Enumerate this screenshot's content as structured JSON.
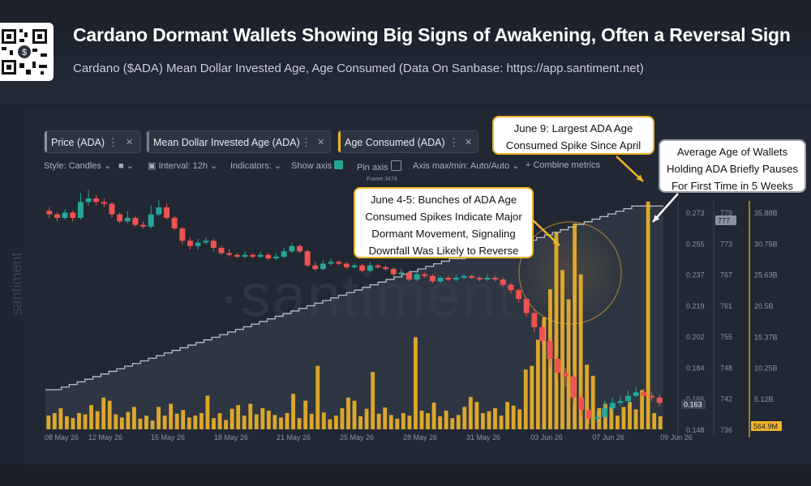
{
  "header": {
    "title": "Cardano Dormant Wallets Showing Big Signs of Awakening, Often a Reversal Sign",
    "subtitle": "Cardano ($ADA) Mean Dollar Invested Age, Age Consumed (Data On Sanbase: https://app.santiment.net)"
  },
  "metrics": [
    {
      "label": "Price (ADA)",
      "color": "#8a92a2"
    },
    {
      "label": "Mean Dollar Invested Age (ADA)",
      "color": "#6f7d95"
    },
    {
      "label": "Age Consumed (ADA)",
      "color": "#f0b429"
    }
  ],
  "toolbar": {
    "style": "Style: Candles",
    "interval": "Interval: 12h",
    "indicators": "Indicators:",
    "show_axis": "Show axis",
    "pin_axis": "Pin axis",
    "axis_maxmin": "Axis max/min: Auto/Auto",
    "combine": "Combine metrics",
    "frame": "Frame 3474"
  },
  "watermark": "santiment",
  "callouts": {
    "june45": "June 4-5: Bunches of ADA Age Consumed Spikes Indicate Major Dormant Movement, Signaling Downfall Was Likely to Reverse",
    "june9": "June 9: Largest ADA Age Consumed Spike Since April",
    "avg_age": "Average Age of Wallets Holding ADA Briefly Pauses For First Time in 5 Weeks"
  },
  "colors": {
    "up": "#26a69a",
    "down": "#ef5350",
    "age_consumed": "#f0b429",
    "mdia": "#b8bec9"
  },
  "chart_data": {
    "type": "candlestick+bar+line",
    "x_tick_labels": [
      "08 May 26",
      "12 May 26",
      "15 May 26",
      "18 May 26",
      "21 May 26",
      "25 May 26",
      "28 May 26",
      "31 May 26",
      "03 Jun 26",
      "07 Jun 26",
      "09 Jun 26"
    ],
    "price_axis": {
      "ticks": [
        "0.273",
        "0.255",
        "0.237",
        "0.219",
        "0.202",
        "0.184",
        "0.166",
        "0.148"
      ],
      "ylim": [
        0.148,
        0.285
      ],
      "current": "0.163"
    },
    "mdia_axis": {
      "ticks": [
        "779",
        "773",
        "767",
        "761",
        "755",
        "748",
        "742",
        "736"
      ],
      "ylim": [
        736,
        782
      ],
      "current": "777"
    },
    "age_consumed_axis": {
      "ticks": [
        "35.88B",
        "30.75B",
        "25.63B",
        "20.5B",
        "15.37B",
        "10.25B",
        "5.12B"
      ],
      "ylim": [
        0,
        37.5
      ],
      "current": "564.9M"
    },
    "price_candles": [
      [
        0.272,
        0.27,
        0.274,
        0.268
      ],
      [
        0.27,
        0.268,
        0.271,
        0.266
      ],
      [
        0.268,
        0.271,
        0.273,
        0.267
      ],
      [
        0.271,
        0.268,
        0.272,
        0.266
      ],
      [
        0.268,
        0.277,
        0.282,
        0.267
      ],
      [
        0.277,
        0.279,
        0.284,
        0.275
      ],
      [
        0.279,
        0.277,
        0.281,
        0.275
      ],
      [
        0.277,
        0.276,
        0.279,
        0.274
      ],
      [
        0.276,
        0.27,
        0.277,
        0.268
      ],
      [
        0.27,
        0.266,
        0.271,
        0.265
      ],
      [
        0.266,
        0.268,
        0.272,
        0.265
      ],
      [
        0.268,
        0.264,
        0.269,
        0.263
      ],
      [
        0.264,
        0.263,
        0.266,
        0.262
      ],
      [
        0.263,
        0.27,
        0.275,
        0.262
      ],
      [
        0.27,
        0.274,
        0.278,
        0.269
      ],
      [
        0.274,
        0.268,
        0.276,
        0.267
      ],
      [
        0.268,
        0.262,
        0.269,
        0.261
      ],
      [
        0.262,
        0.255,
        0.263,
        0.253
      ],
      [
        0.255,
        0.252,
        0.257,
        0.25
      ],
      [
        0.252,
        0.254,
        0.256,
        0.25
      ],
      [
        0.254,
        0.255,
        0.257,
        0.253
      ],
      [
        0.255,
        0.251,
        0.256,
        0.249
      ],
      [
        0.251,
        0.248,
        0.252,
        0.247
      ],
      [
        0.248,
        0.247,
        0.25,
        0.246
      ],
      [
        0.247,
        0.246,
        0.248,
        0.245
      ],
      [
        0.246,
        0.247,
        0.249,
        0.245
      ],
      [
        0.247,
        0.246,
        0.248,
        0.245
      ],
      [
        0.246,
        0.247,
        0.249,
        0.245
      ],
      [
        0.247,
        0.245,
        0.248,
        0.244
      ],
      [
        0.245,
        0.246,
        0.248,
        0.244
      ],
      [
        0.246,
        0.249,
        0.251,
        0.245
      ],
      [
        0.249,
        0.252,
        0.254,
        0.248
      ],
      [
        0.252,
        0.249,
        0.253,
        0.248
      ],
      [
        0.249,
        0.241,
        0.25,
        0.24
      ],
      [
        0.241,
        0.239,
        0.243,
        0.238
      ],
      [
        0.239,
        0.242,
        0.244,
        0.238
      ],
      [
        0.242,
        0.243,
        0.245,
        0.241
      ],
      [
        0.243,
        0.242,
        0.244,
        0.241
      ],
      [
        0.242,
        0.24,
        0.243,
        0.239
      ],
      [
        0.24,
        0.241,
        0.242,
        0.239
      ],
      [
        0.241,
        0.238,
        0.242,
        0.237
      ],
      [
        0.238,
        0.241,
        0.243,
        0.237
      ],
      [
        0.241,
        0.24,
        0.242,
        0.239
      ],
      [
        0.24,
        0.239,
        0.241,
        0.238
      ],
      [
        0.239,
        0.236,
        0.24,
        0.235
      ],
      [
        0.236,
        0.237,
        0.239,
        0.235
      ],
      [
        0.237,
        0.233,
        0.238,
        0.232
      ],
      [
        0.233,
        0.236,
        0.238,
        0.232
      ],
      [
        0.236,
        0.235,
        0.237,
        0.234
      ],
      [
        0.235,
        0.232,
        0.236,
        0.231
      ],
      [
        0.232,
        0.234,
        0.235,
        0.231
      ],
      [
        0.234,
        0.233,
        0.235,
        0.232
      ],
      [
        0.233,
        0.234,
        0.236,
        0.232
      ],
      [
        0.234,
        0.235,
        0.236,
        0.233
      ],
      [
        0.235,
        0.234,
        0.236,
        0.233
      ],
      [
        0.234,
        0.233,
        0.235,
        0.232
      ],
      [
        0.233,
        0.234,
        0.236,
        0.232
      ],
      [
        0.234,
        0.233,
        0.235,
        0.232
      ],
      [
        0.233,
        0.23,
        0.234,
        0.229
      ],
      [
        0.23,
        0.227,
        0.231,
        0.225
      ],
      [
        0.227,
        0.222,
        0.228,
        0.22
      ],
      [
        0.222,
        0.214,
        0.223,
        0.212
      ],
      [
        0.214,
        0.206,
        0.216,
        0.203
      ],
      [
        0.206,
        0.198,
        0.208,
        0.196
      ],
      [
        0.198,
        0.188,
        0.2,
        0.184
      ],
      [
        0.188,
        0.18,
        0.19,
        0.176
      ],
      [
        0.18,
        0.178,
        0.183,
        0.172
      ],
      [
        0.178,
        0.166,
        0.18,
        0.163
      ],
      [
        0.166,
        0.159,
        0.168,
        0.155
      ],
      [
        0.159,
        0.154,
        0.16,
        0.151
      ],
      [
        0.154,
        0.155,
        0.158,
        0.152
      ],
      [
        0.155,
        0.16,
        0.164,
        0.154
      ],
      [
        0.16,
        0.163,
        0.166,
        0.158
      ],
      [
        0.163,
        0.164,
        0.167,
        0.161
      ],
      [
        0.164,
        0.167,
        0.17,
        0.162
      ],
      [
        0.167,
        0.169,
        0.172,
        0.166
      ],
      [
        0.169,
        0.167,
        0.171,
        0.165
      ],
      [
        0.167,
        0.166,
        0.169,
        0.164
      ],
      [
        0.166,
        0.163,
        0.168,
        0.161
      ]
    ],
    "age_consumed_bars": [
      2.2,
      2.6,
      3.4,
      2.1,
      1.8,
      2.6,
      2.4,
      3.9,
      2.9,
      5.1,
      4.6,
      2.4,
      1.9,
      2.8,
      3.6,
      1.7,
      2.2,
      1.4,
      3.6,
      2.2,
      4.1,
      2.5,
      3.1,
      1.9,
      2.2,
      2.6,
      5.4,
      1.8,
      2.6,
      1.5,
      3.3,
      3.9,
      2.2,
      4.1,
      2.4,
      3.4,
      3.0,
      2.3,
      1.9,
      2.6,
      5.7,
      1.8,
      4.6,
      2.5,
      10.2,
      2.7,
      1.6,
      2.2,
      3.4,
      5.1,
      4.6,
      2.1,
      3.3,
      9.2,
      2.5,
      3.5,
      2.3,
      1.7,
      2.6,
      2.2,
      14.8,
      3.0,
      2.6,
      4.3,
      2.1,
      3.0,
      1.8,
      2.3,
      3.6,
      5.2,
      4.4,
      2.6,
      2.9,
      3.4,
      2.2,
      4.4,
      3.8,
      3.2,
      9.6,
      10.2,
      14.4,
      18.0,
      22.5,
      31.6,
      25.6,
      20.9,
      33.1,
      24.9,
      10.4,
      8.6,
      3.4,
      4.1,
      3.6,
      2.2,
      3.6,
      4.4,
      3.2,
      6.3,
      36.6,
      2.6,
      2.1
    ],
    "mdia_line": [
      742,
      742,
      742.5,
      743,
      743.5,
      744,
      744.5,
      745,
      745.5,
      746,
      746.5,
      747,
      747.5,
      748,
      748.5,
      749,
      749.5,
      750,
      750.5,
      751,
      751.5,
      752,
      752.5,
      753,
      753.5,
      754,
      754.5,
      755,
      755.5,
      756,
      756.5,
      757,
      757.5,
      758,
      758.5,
      759,
      759.5,
      760,
      760.5,
      761,
      761.5,
      762,
      762.5,
      763,
      763.5,
      764,
      764.5,
      765,
      765.5,
      766,
      766.5,
      767,
      767,
      767.5,
      767.5,
      768,
      768,
      768.5,
      769,
      769.5,
      770,
      770.5,
      771,
      771.5,
      772,
      772.5,
      773,
      773.5,
      774,
      774.5,
      775,
      775.5,
      776,
      776.5,
      777,
      777,
      777,
      777,
      777
    ]
  }
}
